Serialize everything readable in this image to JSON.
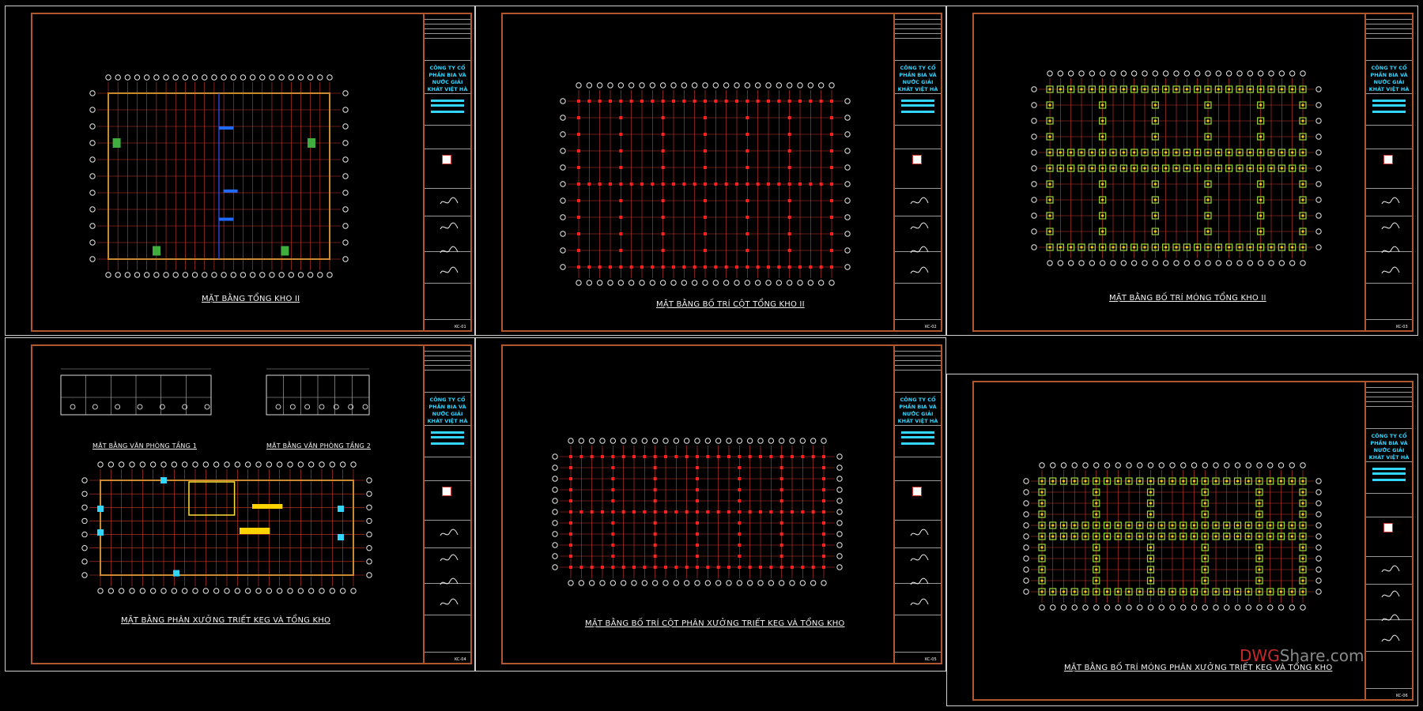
{
  "sheets": [
    {
      "id": "s1",
      "title": "MẶT BẰNG TỔNG KHO II",
      "type": "overall",
      "sheet_no": "KC-01"
    },
    {
      "id": "s2",
      "title": "MẶT BẰNG BỐ TRÍ CỘT TỔNG KHO II",
      "type": "columns",
      "sheet_no": "KC-02"
    },
    {
      "id": "s3",
      "title": "MẶT BẰNG BỐ TRÍ MÓNG TỔNG KHO II",
      "type": "foundations",
      "sheet_no": "KC-03"
    },
    {
      "id": "s4",
      "title": "MẶT BẰNG PHÂN XƯỞNG TRIẾT KEG VÀ TỔNG KHO",
      "type": "overall2",
      "sheet_no": "KC-04",
      "sub_titles": [
        "MẶT BẰNG VĂN PHÒNG TẦNG 1",
        "MẶT BẰNG VĂN PHÒNG TẦNG 2"
      ]
    },
    {
      "id": "s5",
      "title": "MẶT BẰNG BỐ TRÍ CỘT PHÂN XƯỞNG TRIẾT KEG VÀ TỔNG KHO",
      "type": "columns",
      "sheet_no": "KC-05"
    },
    {
      "id": "s6",
      "title": "MẶT BẰNG BỐ TRÍ MÓNG PHÂN XƯỞNG TRIẾT KEG VÀ TỔNG KHO",
      "type": "foundations",
      "sheet_no": "KC-06"
    }
  ],
  "title_block": {
    "company": "CÔNG TY CỔ PHẦN BIA VÀ NƯỚC GIẢI KHÁT VIỆT HÀ"
  },
  "watermark": {
    "part1": "DWG",
    "part2": "Share.com"
  },
  "colors": {
    "grid": "#d23a2a",
    "frame": "#b0572e",
    "accent": "#33d6ff",
    "column": "#ff2020",
    "footing": "#9ad93a"
  }
}
